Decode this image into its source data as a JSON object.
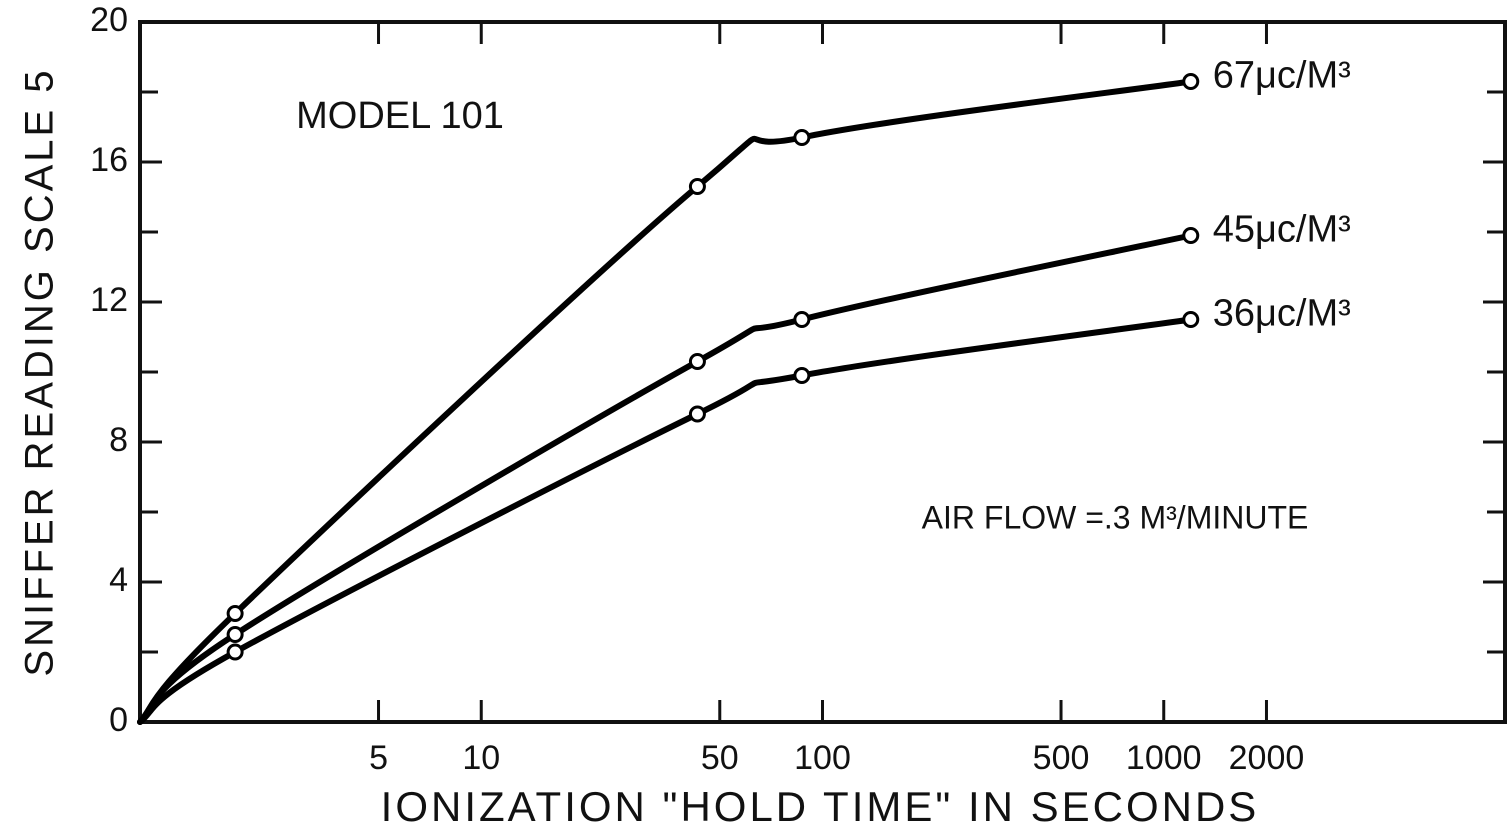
{
  "chart_data": {
    "type": "line",
    "xlabel": "IONIZATION \"HOLD TIME\" IN SECONDS",
    "ylabel": "SNIFFER READING SCALE 5",
    "annotations": [
      "MODEL 101",
      "AIR FLOW =.3 M³/MINUTE"
    ],
    "x": [
      1,
      1.9,
      43,
      87,
      1200
    ],
    "markers": [
      false,
      true,
      true,
      true,
      true
    ],
    "series": [
      {
        "name": "67μc/M³",
        "color": "#000000",
        "values": [
          0,
          3.1,
          15.3,
          16.7,
          18.3
        ]
      },
      {
        "name": "45μc/M³",
        "color": "#000000",
        "values": [
          0,
          2.5,
          10.3,
          11.5,
          13.9
        ]
      },
      {
        "name": "36μc/M³",
        "color": "#000000",
        "values": [
          0,
          2.0,
          8.8,
          9.9,
          11.5
        ]
      }
    ],
    "xscale": "log",
    "xlim": [
      1,
      10000
    ],
    "xticks": [
      5,
      10,
      50,
      100,
      500,
      1000,
      2000
    ],
    "ylim": [
      0,
      20
    ],
    "yticks": [
      0,
      4,
      8,
      12,
      16,
      20
    ],
    "yminor_ticks": [
      2,
      6,
      10,
      14,
      18
    ]
  }
}
